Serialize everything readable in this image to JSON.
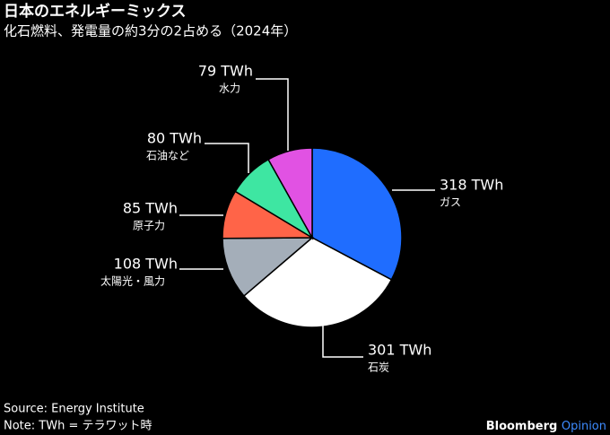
{
  "chart_data": {
    "type": "pie",
    "title": "日本のエネルギーミックス",
    "subtitle": "化石燃料、発電量の約3分の2占める（2024年）",
    "categories": [
      "ガス",
      "石炭",
      "太陽光・風力",
      "原子力",
      "石油など",
      "水力"
    ],
    "values": [
      318,
      301,
      108,
      85,
      80,
      79
    ],
    "value_labels": [
      "318 TWh",
      "301 TWh",
      "108 TWh",
      "85 TWh",
      "80 TWh",
      "79 TWh"
    ],
    "colors": [
      "#1f6dff",
      "#ffffff",
      "#a4aeb9",
      "#ff6448",
      "#3ee6a2",
      "#e152e3"
    ],
    "source": "Source: Energy Institute",
    "note": "Note: TWh = テラワット時"
  },
  "brand": {
    "name": "Bloomberg",
    "section": "Opinion"
  }
}
